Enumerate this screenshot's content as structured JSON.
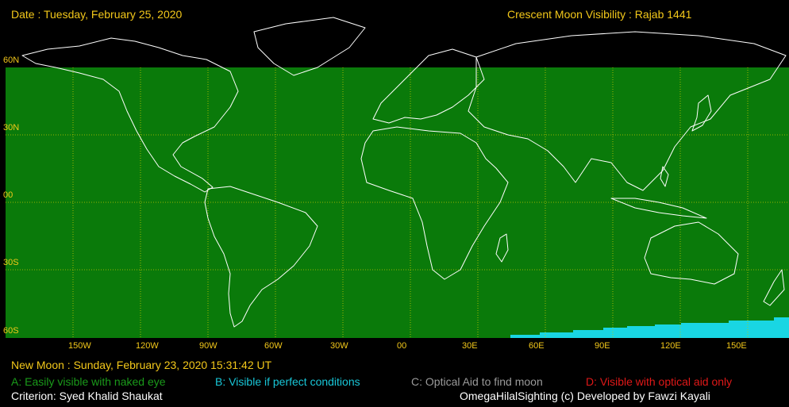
{
  "header": {
    "date": "Date : Tuesday, February 25, 2020",
    "title": "Crescent Moon Visibility : Rajab  1441"
  },
  "map": {
    "colors": {
      "zone_a": "#0a7a0a",
      "zone_b": "#19d6e3",
      "grid": "#c8c800",
      "coast": "#ffffff",
      "background": "#000000"
    },
    "lat_labels": [
      "60N",
      "30N",
      "00",
      "30S",
      "60S"
    ],
    "lon_labels": [
      "150W",
      "120W",
      "90W",
      "60W",
      "30W",
      "00",
      "30E",
      "60E",
      "90E",
      "120E",
      "150E"
    ]
  },
  "footer": {
    "new_moon": "New Moon : Sunday, February 23, 2020  15:31:42  UT",
    "legend": {
      "a": "A: Easily visible with naked eye",
      "b": "B: Visible if perfect conditions",
      "c": "C: Optical Aid to find moon",
      "d": "D: Visible with optical aid only"
    },
    "criterion": "Criterion: Syed Khalid Shaukat",
    "credits": "OmegaHilalSighting  (c)  Developed by Fawzi Kayali"
  }
}
